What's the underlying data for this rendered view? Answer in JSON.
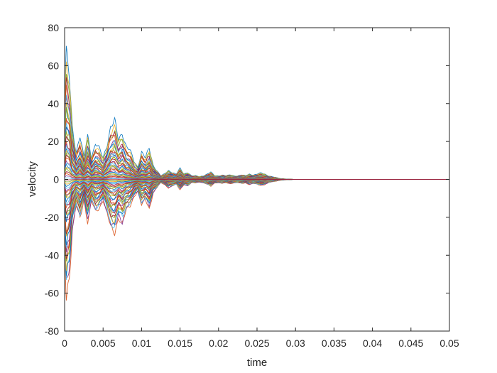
{
  "chart_data": {
    "type": "line",
    "title": "",
    "xlabel": "time",
    "ylabel": "velocity",
    "xlim": [
      0,
      0.05
    ],
    "ylim": [
      -80,
      80
    ],
    "xticks": [
      0,
      0.005,
      0.01,
      0.015,
      0.02,
      0.025,
      0.03,
      0.035,
      0.04,
      0.045,
      0.05
    ],
    "xtick_labels": [
      "0",
      "0.005",
      "0.01",
      "0.015",
      "0.02",
      "0.025",
      "0.03",
      "0.035",
      "0.04",
      "0.045",
      "0.05"
    ],
    "yticks": [
      -80,
      -60,
      -40,
      -20,
      0,
      20,
      40,
      60,
      80
    ],
    "ytick_labels": [
      "-80",
      "-60",
      "-40",
      "-20",
      "0",
      "20",
      "40",
      "60",
      "80"
    ],
    "grid": false,
    "legend": "none",
    "series_colors": [
      "#0072BD",
      "#D95319",
      "#EDB120",
      "#7E2F8E",
      "#77AC30",
      "#4DBEEE",
      "#A2142F"
    ],
    "envelope": {
      "x": [
        0,
        0.0002,
        0.0004,
        0.0006,
        0.0008,
        0.001,
        0.0015,
        0.002,
        0.0025,
        0.003,
        0.0035,
        0.004,
        0.0045,
        0.005,
        0.0055,
        0.006,
        0.0065,
        0.007,
        0.0075,
        0.008,
        0.0085,
        0.009,
        0.0095,
        0.01,
        0.0105,
        0.011,
        0.0115,
        0.012,
        0.0125,
        0.013,
        0.0135,
        0.014,
        0.0145,
        0.015,
        0.0155,
        0.016,
        0.0165,
        0.017,
        0.0175,
        0.018,
        0.0185,
        0.019,
        0.0195,
        0.02,
        0.0205,
        0.021,
        0.0215,
        0.022,
        0.0225,
        0.023,
        0.0235,
        0.024,
        0.0245,
        0.025,
        0.0255,
        0.026,
        0.0265,
        0.027,
        0.0275,
        0.028,
        0.029,
        0.03,
        0.035,
        0.04,
        0.045,
        0.05
      ],
      "amplitude": [
        35,
        70,
        62,
        58,
        45,
        30,
        16,
        24,
        12,
        25,
        13,
        20,
        17,
        12,
        20,
        30,
        32,
        22,
        27,
        19,
        16,
        10,
        7,
        16,
        12,
        17,
        8,
        5,
        2,
        3,
        5,
        4,
        3,
        6,
        3,
        4,
        2,
        2,
        1.5,
        2,
        3,
        4,
        2,
        2,
        2.5,
        2,
        2.5,
        2,
        2,
        2.5,
        2,
        3,
        2.5,
        3,
        3.5,
        3,
        2,
        1.5,
        1,
        0.5,
        0.2,
        0,
        0,
        0,
        0,
        0
      ]
    }
  }
}
